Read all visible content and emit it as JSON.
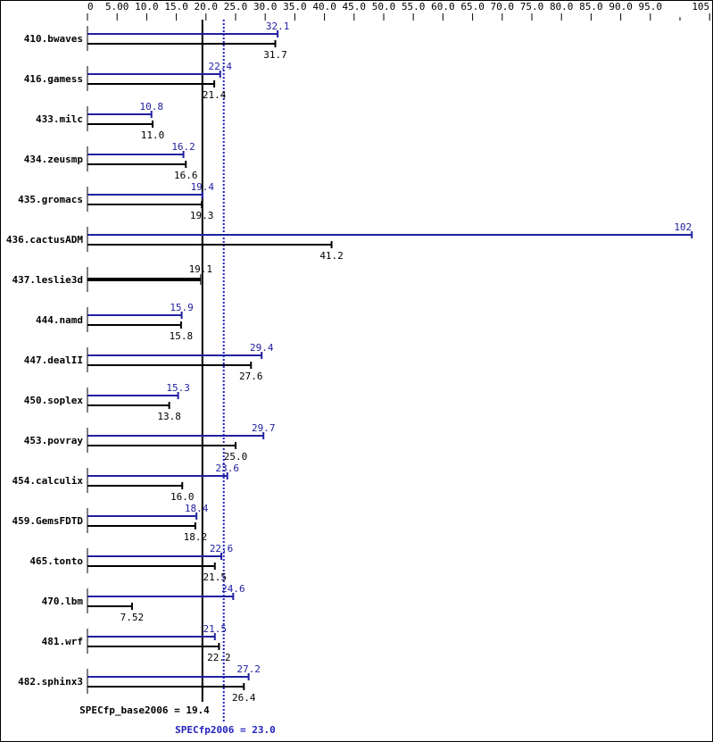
{
  "chart_data": {
    "type": "bar",
    "orientation": "horizontal",
    "xlim": [
      0,
      105
    ],
    "ticks": [
      "0",
      "5.00",
      "10.0",
      "15.0",
      "20.0",
      "25.0",
      "30.0",
      "35.0",
      "40.0",
      "45.0",
      "50.0",
      "55.0",
      "60.0",
      "65.0",
      "70.0",
      "75.0",
      "80.0",
      "85.0",
      "90.0",
      "95.0",
      "105"
    ],
    "tick_values": [
      0,
      5,
      10,
      15,
      20,
      25,
      30,
      35,
      40,
      45,
      50,
      55,
      60,
      65,
      70,
      75,
      80,
      85,
      90,
      95,
      105
    ],
    "categories": [
      "410.bwaves",
      "416.gamess",
      "433.milc",
      "434.zeusmp",
      "435.gromacs",
      "436.cactusADM",
      "437.leslie3d",
      "444.namd",
      "447.dealII",
      "450.soplex",
      "453.povray",
      "454.calculix",
      "459.GemsFDTD",
      "465.tonto",
      "470.lbm",
      "481.wrf",
      "482.sphinx3"
    ],
    "series": [
      {
        "key": "peak",
        "color": "#2020a0",
        "values": [
          32.1,
          22.4,
          10.8,
          16.2,
          19.4,
          102,
          null,
          15.9,
          29.4,
          15.3,
          29.7,
          23.6,
          18.4,
          22.6,
          24.6,
          21.5,
          27.2
        ],
        "labels": [
          "32.1",
          "22.4",
          "10.8",
          "16.2",
          "19.4",
          "102",
          "",
          "15.9",
          "29.4",
          "15.3",
          "29.7",
          "23.6",
          "18.4",
          "22.6",
          "24.6",
          "21.5",
          "27.2"
        ]
      },
      {
        "key": "base",
        "color": "#000000",
        "values": [
          31.7,
          21.4,
          11.0,
          16.6,
          19.3,
          41.2,
          19.1,
          15.8,
          27.6,
          13.8,
          25.0,
          16.0,
          18.2,
          21.5,
          7.52,
          22.2,
          26.4
        ],
        "labels": [
          "31.7",
          "21.4",
          "11.0",
          "16.6",
          "19.3",
          "41.2",
          "19.1",
          "15.8",
          "27.6",
          "13.8",
          "25.0",
          "16.0",
          "18.2",
          "21.5",
          "7.52",
          "22.2",
          "26.4"
        ]
      }
    ],
    "reference_lines": [
      {
        "label": "SPECfp_base2006 = 19.4",
        "value": 19.4,
        "color": "#000000",
        "style": "solid"
      },
      {
        "label": "SPECfp2006 = 23.0",
        "value": 23.0,
        "color": "#2020c0",
        "style": "dotted"
      }
    ]
  }
}
